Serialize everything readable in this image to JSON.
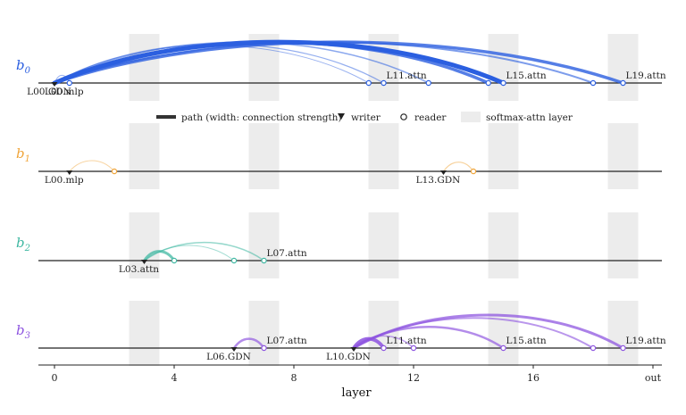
{
  "rows": [
    {
      "name": "b",
      "index": "0",
      "color": "#2b5fe0",
      "labels": [
        {
          "layer": 0,
          "text": "L00.GDN",
          "pos": "below"
        },
        {
          "layer": 0.5,
          "text": "L00.mlp",
          "pos": "below"
        },
        {
          "layer": 11,
          "text": "L11.attn",
          "pos": "above"
        },
        {
          "layer": 15,
          "text": "L15.attn",
          "pos": "above"
        },
        {
          "layer": 19,
          "text": "L19.attn",
          "pos": "above"
        }
      ],
      "nodes": [
        0,
        0.5,
        10.5,
        11,
        12.5,
        14.5,
        15,
        18,
        19
      ],
      "arcs": [
        {
          "from": 0,
          "to": 15,
          "strength": 5
        },
        {
          "from": 0,
          "to": 14.5,
          "strength": 3.5
        },
        {
          "from": 0,
          "to": 19,
          "strength": 3.5
        },
        {
          "from": 0,
          "to": 18,
          "strength": 2
        },
        {
          "from": 0,
          "to": 12.5,
          "strength": 1.5
        },
        {
          "from": 0,
          "to": 11,
          "strength": 1.2
        },
        {
          "from": 0,
          "to": 10.5,
          "strength": 1
        },
        {
          "from": 0,
          "to": 0.5,
          "strength": 1
        }
      ]
    },
    {
      "name": "b",
      "index": "1",
      "color": "#f0a53a",
      "labels": [
        {
          "layer": 0.5,
          "text": "L00.mlp",
          "pos": "below"
        },
        {
          "layer": 13,
          "text": "L13.GDN",
          "pos": "below"
        }
      ],
      "nodes": [
        0.5,
        2,
        13,
        14
      ],
      "arcs": [
        {
          "from": 0.5,
          "to": 2,
          "strength": 1
        },
        {
          "from": 13,
          "to": 14,
          "strength": 1.2
        }
      ]
    },
    {
      "name": "b",
      "index": "2",
      "color": "#3fb8a2",
      "labels": [
        {
          "layer": 3,
          "text": "L03.attn",
          "pos": "below"
        },
        {
          "layer": 7,
          "text": "L07.attn",
          "pos": "above"
        }
      ],
      "nodes": [
        3,
        4,
        6,
        7
      ],
      "arcs": [
        {
          "from": 3,
          "to": 4,
          "strength": 3
        },
        {
          "from": 3,
          "to": 7,
          "strength": 1.5
        },
        {
          "from": 3,
          "to": 6,
          "strength": 1
        }
      ]
    },
    {
      "name": "b",
      "index": "3",
      "color": "#8e55e0",
      "labels": [
        {
          "layer": 6,
          "text": "L06.GDN",
          "pos": "below"
        },
        {
          "layer": 7,
          "text": "L07.attn",
          "pos": "above"
        },
        {
          "layer": 10,
          "text": "L10.GDN",
          "pos": "below"
        },
        {
          "layer": 11,
          "text": "L11.attn",
          "pos": "above"
        },
        {
          "layer": 15,
          "text": "L15.attn",
          "pos": "above"
        },
        {
          "layer": 19,
          "text": "L19.attn",
          "pos": "above"
        }
      ],
      "nodes": [
        6,
        7,
        10,
        11,
        12,
        15,
        18,
        19
      ],
      "arcs": [
        {
          "from": 6,
          "to": 7,
          "strength": 2.5
        },
        {
          "from": 10,
          "to": 11,
          "strength": 4
        },
        {
          "from": 10,
          "to": 19,
          "strength": 3
        },
        {
          "from": 10,
          "to": 15,
          "strength": 2.5
        },
        {
          "from": 10,
          "to": 18,
          "strength": 2
        },
        {
          "from": 10,
          "to": 12,
          "strength": 1.5
        }
      ]
    }
  ],
  "softmax_layers": [
    3,
    7,
    11,
    15,
    19
  ],
  "axis": {
    "title": "layer",
    "ticks": [
      {
        "value": 0,
        "label": "0"
      },
      {
        "value": 4,
        "label": "4"
      },
      {
        "value": 8,
        "label": "8"
      },
      {
        "value": 12,
        "label": "12"
      },
      {
        "value": 16,
        "label": "16"
      },
      {
        "value": 20,
        "label": "out"
      }
    ]
  },
  "legend": {
    "path": "path (width: connection strength)",
    "writer": "writer",
    "reader": "reader",
    "softmax": "softmax-attn layer"
  }
}
